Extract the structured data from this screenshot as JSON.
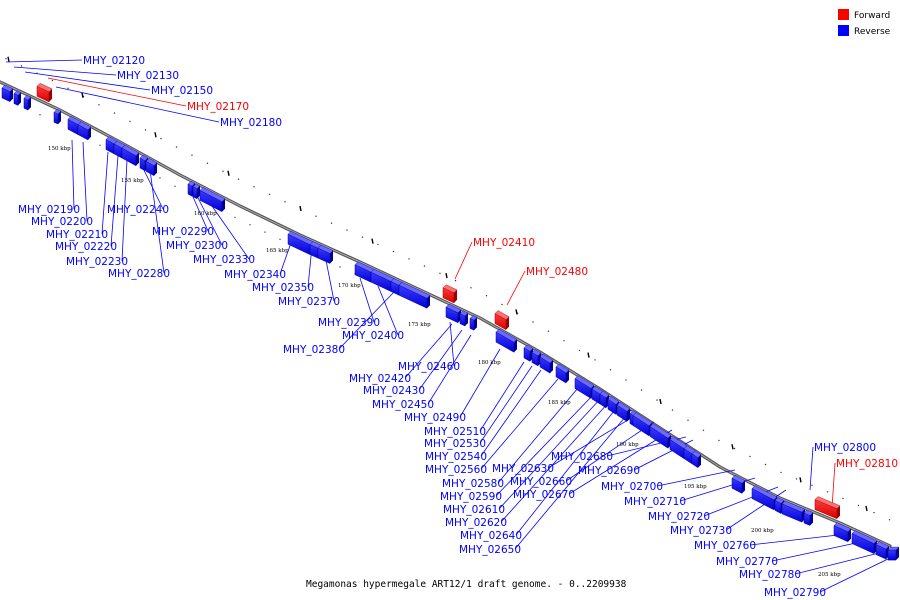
{
  "caption": "Megamonas hypermegale ART12/1 draft genome. - 0..2209938",
  "legend": {
    "forward": {
      "label": "Forward",
      "color": "#ff0000"
    },
    "reverse": {
      "label": "Reverse",
      "color": "#0000ff"
    }
  },
  "scale_labels": [
    "150 kbp",
    "155 kbp",
    "160 kbp",
    "165 kbp",
    "170 kbp",
    "175 kbp",
    "180 kbp",
    "185 kbp",
    "190 kbp",
    "195 kbp",
    "200 kbp",
    "205 kbp"
  ],
  "genes": [
    {
      "id": "MHY_02120",
      "strand": "reverse"
    },
    {
      "id": "MHY_02130",
      "strand": "reverse"
    },
    {
      "id": "MHY_02150",
      "strand": "reverse"
    },
    {
      "id": "MHY_02170",
      "strand": "forward"
    },
    {
      "id": "MHY_02180",
      "strand": "reverse"
    },
    {
      "id": "MHY_02190",
      "strand": "reverse"
    },
    {
      "id": "MHY_02200",
      "strand": "reverse"
    },
    {
      "id": "MHY_02210",
      "strand": "reverse"
    },
    {
      "id": "MHY_02220",
      "strand": "reverse"
    },
    {
      "id": "MHY_02230",
      "strand": "reverse"
    },
    {
      "id": "MHY_02240",
      "strand": "reverse"
    },
    {
      "id": "MHY_02280",
      "strand": "reverse"
    },
    {
      "id": "MHY_02290",
      "strand": "reverse"
    },
    {
      "id": "MHY_02300",
      "strand": "reverse"
    },
    {
      "id": "MHY_02330",
      "strand": "reverse"
    },
    {
      "id": "MHY_02340",
      "strand": "reverse"
    },
    {
      "id": "MHY_02350",
      "strand": "reverse"
    },
    {
      "id": "MHY_02370",
      "strand": "reverse"
    },
    {
      "id": "MHY_02390",
      "strand": "reverse"
    },
    {
      "id": "MHY_02400",
      "strand": "reverse"
    },
    {
      "id": "MHY_02380",
      "strand": "reverse"
    },
    {
      "id": "MHY_02410",
      "strand": "forward"
    },
    {
      "id": "MHY_02480",
      "strand": "forward"
    },
    {
      "id": "MHY_02460",
      "strand": "reverse"
    },
    {
      "id": "MHY_02420",
      "strand": "reverse"
    },
    {
      "id": "MHY_02430",
      "strand": "reverse"
    },
    {
      "id": "MHY_02450",
      "strand": "reverse"
    },
    {
      "id": "MHY_02490",
      "strand": "reverse"
    },
    {
      "id": "MHY_02510",
      "strand": "reverse"
    },
    {
      "id": "MHY_02530",
      "strand": "reverse"
    },
    {
      "id": "MHY_02540",
      "strand": "reverse"
    },
    {
      "id": "MHY_02560",
      "strand": "reverse"
    },
    {
      "id": "MHY_02580",
      "strand": "reverse"
    },
    {
      "id": "MHY_02590",
      "strand": "reverse"
    },
    {
      "id": "MHY_02610",
      "strand": "reverse"
    },
    {
      "id": "MHY_02620",
      "strand": "reverse"
    },
    {
      "id": "MHY_02640",
      "strand": "reverse"
    },
    {
      "id": "MHY_02650",
      "strand": "reverse"
    },
    {
      "id": "MHY_02630",
      "strand": "reverse"
    },
    {
      "id": "MHY_02660",
      "strand": "reverse"
    },
    {
      "id": "MHY_02670",
      "strand": "reverse"
    },
    {
      "id": "MHY_02680",
      "strand": "reverse"
    },
    {
      "id": "MHY_02690",
      "strand": "reverse"
    },
    {
      "id": "MHY_02700",
      "strand": "reverse"
    },
    {
      "id": "MHY_02710",
      "strand": "reverse"
    },
    {
      "id": "MHY_02720",
      "strand": "reverse"
    },
    {
      "id": "MHY_02730",
      "strand": "reverse"
    },
    {
      "id": "MHY_02760",
      "strand": "reverse"
    },
    {
      "id": "MHY_02770",
      "strand": "reverse"
    },
    {
      "id": "MHY_02780",
      "strand": "reverse"
    },
    {
      "id": "MHY_02790",
      "strand": "reverse"
    },
    {
      "id": "MHY_02800",
      "strand": "reverse"
    },
    {
      "id": "MHY_02810",
      "strand": "forward"
    }
  ]
}
